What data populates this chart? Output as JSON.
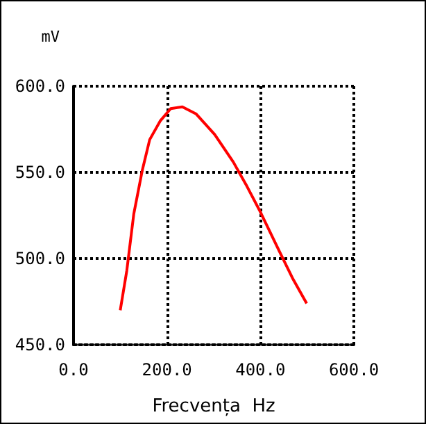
{
  "chart_data": {
    "type": "line",
    "ylabel": "mV",
    "xlabel": "Frecvența  Hz",
    "x": [
      100,
      114,
      129,
      147,
      163,
      186,
      208,
      233,
      262,
      302,
      342,
      371,
      400,
      441,
      470,
      499
    ],
    "series": [
      {
        "color": "#ff0000",
        "values": [
          470,
          493,
          526,
          551,
          569,
          580,
          587,
          588,
          584,
          572,
          556,
          542,
          527,
          504,
          488,
          474
        ]
      }
    ],
    "xlim": [
      0,
      600
    ],
    "ylim": [
      450,
      600
    ],
    "xticks": [
      {
        "value": 0,
        "label": "0.0"
      },
      {
        "value": 200,
        "label": "200.0"
      },
      {
        "value": 400,
        "label": "400.0"
      },
      {
        "value": 600,
        "label": "600.0"
      }
    ],
    "yticks": [
      {
        "value": 450,
        "label": "450.0"
      },
      {
        "value": 500,
        "label": "500.0"
      },
      {
        "value": 550,
        "label": "550.0"
      },
      {
        "value": 600,
        "label": "600.0"
      }
    ],
    "grid": true,
    "marker": "none",
    "line_style": "solid"
  }
}
